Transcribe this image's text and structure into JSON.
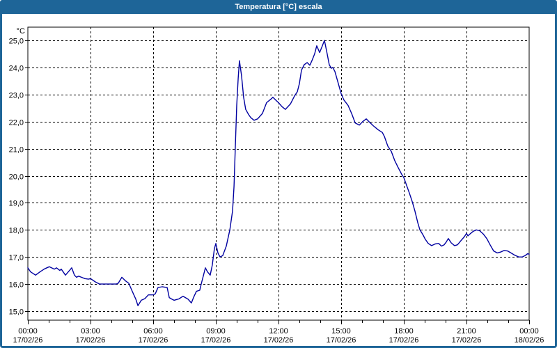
{
  "window": {
    "title": "Temperatura [°C] escala"
  },
  "colors": {
    "titlebar": "#1E6598",
    "border": "#1E6598",
    "titlebar_text": "#FFFFFF",
    "plot_bg": "#FFFFFF",
    "grid": "#000000",
    "text": "#000000",
    "line": "#0000A0"
  },
  "chart_data": {
    "type": "line",
    "title": "Temperatura [°C] escala",
    "xlabel": "",
    "ylabel": "°C",
    "ylim": [
      14.7,
      25.5
    ],
    "grid": true,
    "legend": "none",
    "x_axis": {
      "unit": "time",
      "start": "17/02/26 00:00",
      "end": "18/02/26 00:00",
      "major_tick_hours": 3,
      "minor_tick_hours": 1
    },
    "y_ticks": [
      {
        "value": 15,
        "label": "15,0"
      },
      {
        "value": 16,
        "label": "16,0"
      },
      {
        "value": 17,
        "label": "17,0"
      },
      {
        "value": 18,
        "label": "18,0"
      },
      {
        "value": 19,
        "label": "19,0"
      },
      {
        "value": 20,
        "label": "20,0"
      },
      {
        "value": 21,
        "label": "21,0"
      },
      {
        "value": 22,
        "label": "22,0"
      },
      {
        "value": 23,
        "label": "23,0"
      },
      {
        "value": 24,
        "label": "24,0"
      },
      {
        "value": 25,
        "label": "25,0"
      }
    ],
    "x_ticks": [
      {
        "hour": 0,
        "time": "00:00",
        "date": "17/02/26"
      },
      {
        "hour": 3,
        "time": "03:00",
        "date": "17/02/26"
      },
      {
        "hour": 6,
        "time": "06:00",
        "date": "17/02/26"
      },
      {
        "hour": 9,
        "time": "09:00",
        "date": "17/02/26"
      },
      {
        "hour": 12,
        "time": "12:00",
        "date": "17/02/26"
      },
      {
        "hour": 15,
        "time": "15:00",
        "date": "17/02/26"
      },
      {
        "hour": 18,
        "time": "18:00",
        "date": "17/02/26"
      },
      {
        "hour": 21,
        "time": "21:00",
        "date": "17/02/26"
      },
      {
        "hour": 24,
        "time": "00:00",
        "date": "18/02/26"
      }
    ],
    "series": [
      {
        "name": "Temperatura [°C]",
        "color": "#0000A0",
        "points": [
          [
            0.0,
            16.6
          ],
          [
            0.13,
            16.45
          ],
          [
            0.37,
            16.33
          ],
          [
            0.6,
            16.46
          ],
          [
            0.8,
            16.56
          ],
          [
            1.03,
            16.64
          ],
          [
            1.27,
            16.55
          ],
          [
            1.37,
            16.6
          ],
          [
            1.53,
            16.5
          ],
          [
            1.6,
            16.55
          ],
          [
            1.8,
            16.33
          ],
          [
            1.97,
            16.48
          ],
          [
            2.1,
            16.6
          ],
          [
            2.23,
            16.33
          ],
          [
            2.33,
            16.25
          ],
          [
            2.43,
            16.29
          ],
          [
            2.57,
            16.25
          ],
          [
            2.73,
            16.2
          ],
          [
            2.9,
            16.18
          ],
          [
            3.0,
            16.2
          ],
          [
            3.23,
            16.08
          ],
          [
            3.43,
            16.0
          ],
          [
            3.9,
            16.0
          ],
          [
            4.23,
            16.0
          ],
          [
            4.33,
            16.03
          ],
          [
            4.5,
            16.25
          ],
          [
            4.67,
            16.12
          ],
          [
            4.83,
            16.03
          ],
          [
            5.0,
            15.73
          ],
          [
            5.17,
            15.44
          ],
          [
            5.27,
            15.2
          ],
          [
            5.43,
            15.4
          ],
          [
            5.6,
            15.46
          ],
          [
            5.77,
            15.6
          ],
          [
            6.0,
            15.6
          ],
          [
            6.1,
            15.64
          ],
          [
            6.23,
            15.87
          ],
          [
            6.43,
            15.9
          ],
          [
            6.67,
            15.87
          ],
          [
            6.77,
            15.5
          ],
          [
            6.9,
            15.44
          ],
          [
            7.0,
            15.4
          ],
          [
            7.23,
            15.45
          ],
          [
            7.43,
            15.55
          ],
          [
            7.67,
            15.44
          ],
          [
            7.83,
            15.3
          ],
          [
            7.93,
            15.5
          ],
          [
            8.07,
            15.73
          ],
          [
            8.23,
            15.77
          ],
          [
            8.3,
            16.0
          ],
          [
            8.5,
            16.6
          ],
          [
            8.6,
            16.45
          ],
          [
            8.73,
            16.33
          ],
          [
            8.83,
            16.7
          ],
          [
            8.93,
            17.3
          ],
          [
            9.0,
            17.5
          ],
          [
            9.1,
            17.15
          ],
          [
            9.2,
            17.0
          ],
          [
            9.33,
            17.05
          ],
          [
            9.5,
            17.4
          ],
          [
            9.67,
            18.0
          ],
          [
            9.8,
            18.7
          ],
          [
            9.87,
            19.6
          ],
          [
            9.93,
            21.0
          ],
          [
            10.0,
            22.6
          ],
          [
            10.07,
            23.6
          ],
          [
            10.13,
            24.25
          ],
          [
            10.23,
            23.7
          ],
          [
            10.33,
            22.9
          ],
          [
            10.43,
            22.45
          ],
          [
            10.57,
            22.26
          ],
          [
            10.67,
            22.15
          ],
          [
            10.83,
            22.05
          ],
          [
            11.0,
            22.1
          ],
          [
            11.23,
            22.3
          ],
          [
            11.43,
            22.7
          ],
          [
            11.67,
            22.85
          ],
          [
            11.73,
            22.9
          ],
          [
            11.9,
            22.77
          ],
          [
            12.0,
            22.7
          ],
          [
            12.17,
            22.55
          ],
          [
            12.33,
            22.45
          ],
          [
            12.57,
            22.65
          ],
          [
            12.77,
            22.95
          ],
          [
            12.9,
            23.1
          ],
          [
            13.0,
            23.4
          ],
          [
            13.1,
            23.9
          ],
          [
            13.23,
            24.1
          ],
          [
            13.37,
            24.18
          ],
          [
            13.5,
            24.08
          ],
          [
            13.6,
            24.25
          ],
          [
            13.73,
            24.5
          ],
          [
            13.83,
            24.8
          ],
          [
            13.97,
            24.55
          ],
          [
            14.1,
            24.8
          ],
          [
            14.2,
            25.0
          ],
          [
            14.33,
            24.5
          ],
          [
            14.43,
            24.1
          ],
          [
            14.53,
            23.97
          ],
          [
            14.6,
            24.0
          ],
          [
            14.7,
            23.85
          ],
          [
            14.83,
            23.5
          ],
          [
            15.0,
            23.03
          ],
          [
            15.13,
            22.8
          ],
          [
            15.33,
            22.6
          ],
          [
            15.5,
            22.3
          ],
          [
            15.67,
            21.95
          ],
          [
            15.87,
            21.87
          ],
          [
            16.03,
            22.0
          ],
          [
            16.2,
            22.1
          ],
          [
            16.33,
            22.0
          ],
          [
            16.53,
            21.85
          ],
          [
            16.77,
            21.7
          ],
          [
            16.97,
            21.6
          ],
          [
            17.07,
            21.45
          ],
          [
            17.23,
            21.1
          ],
          [
            17.4,
            20.9
          ],
          [
            17.57,
            20.55
          ],
          [
            17.73,
            20.3
          ],
          [
            17.9,
            20.05
          ],
          [
            18.0,
            19.93
          ],
          [
            18.13,
            19.65
          ],
          [
            18.27,
            19.35
          ],
          [
            18.4,
            19.05
          ],
          [
            18.53,
            18.7
          ],
          [
            18.67,
            18.26
          ],
          [
            18.77,
            18.0
          ],
          [
            18.9,
            17.84
          ],
          [
            19.03,
            17.65
          ],
          [
            19.17,
            17.5
          ],
          [
            19.33,
            17.42
          ],
          [
            19.5,
            17.48
          ],
          [
            19.67,
            17.5
          ],
          [
            19.8,
            17.4
          ],
          [
            19.93,
            17.45
          ],
          [
            20.03,
            17.55
          ],
          [
            20.13,
            17.68
          ],
          [
            20.27,
            17.52
          ],
          [
            20.43,
            17.42
          ],
          [
            20.57,
            17.45
          ],
          [
            20.73,
            17.6
          ],
          [
            20.9,
            17.75
          ],
          [
            21.0,
            17.87
          ],
          [
            21.07,
            17.78
          ],
          [
            21.17,
            17.85
          ],
          [
            21.33,
            17.95
          ],
          [
            21.47,
            18.0
          ],
          [
            21.63,
            17.97
          ],
          [
            21.8,
            17.85
          ],
          [
            21.97,
            17.68
          ],
          [
            22.13,
            17.45
          ],
          [
            22.3,
            17.22
          ],
          [
            22.47,
            17.15
          ],
          [
            22.63,
            17.18
          ],
          [
            22.8,
            17.24
          ],
          [
            22.97,
            17.22
          ],
          [
            23.13,
            17.15
          ],
          [
            23.3,
            17.07
          ],
          [
            23.5,
            17.0
          ],
          [
            23.67,
            17.0
          ],
          [
            23.8,
            17.05
          ],
          [
            23.93,
            17.12
          ],
          [
            24.0,
            17.1
          ]
        ]
      }
    ]
  }
}
